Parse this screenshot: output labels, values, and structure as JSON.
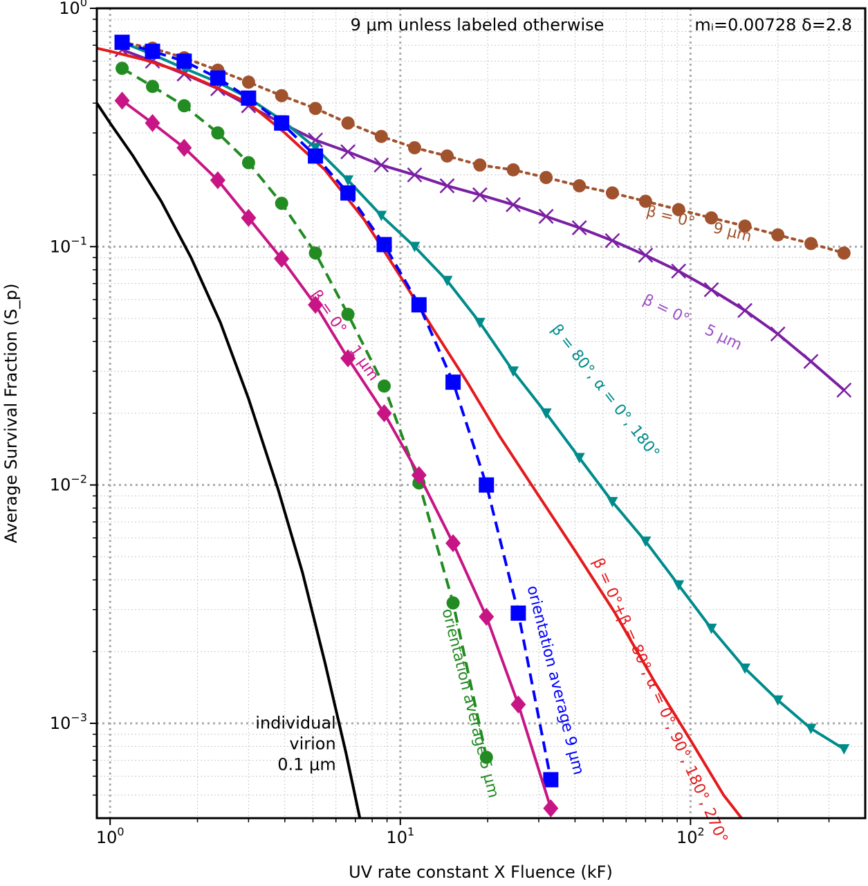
{
  "chart_data": {
    "type": "line",
    "title": "",
    "xlabel": "UV rate constant X Fluence (kF)",
    "ylabel": "Average Survival Fraction (S_p)",
    "xscale": "log",
    "yscale": "log",
    "xlim": [
      0.9,
      400
    ],
    "ylim": [
      0.0004,
      1
    ],
    "grid": true,
    "x_ticks": [
      {
        "value": 1,
        "base": "10",
        "exp": "0"
      },
      {
        "value": 10,
        "base": "10",
        "exp": "1"
      },
      {
        "value": 100,
        "base": "10",
        "exp": "2"
      }
    ],
    "y_ticks": [
      {
        "value": 1,
        "base": "10",
        "exp": "0"
      },
      {
        "value": 0.1,
        "base": "10",
        "exp": "−1"
      },
      {
        "value": 0.01,
        "base": "10",
        "exp": "−2"
      },
      {
        "value": 0.001,
        "base": "10",
        "exp": "−3"
      }
    ],
    "header_annotation": {
      "left": "9 μm unless labeled otherwise",
      "right": "mᵢ=0.00728 δ=2.8"
    },
    "series": [
      {
        "id": "beta0-9um",
        "color": "#a0522d",
        "linestyle": "dotted",
        "marker": "circle",
        "x": [
          1.1,
          1.4,
          1.8,
          2.35,
          3.0,
          3.9,
          5.1,
          6.6,
          8.6,
          11.2,
          14.5,
          18.8,
          24.5,
          31.8,
          41.4,
          53.8,
          70,
          91,
          118,
          154,
          200,
          260,
          338
        ],
        "y": [
          0.72,
          0.68,
          0.62,
          0.55,
          0.49,
          0.43,
          0.38,
          0.33,
          0.29,
          0.26,
          0.24,
          0.22,
          0.21,
          0.195,
          0.18,
          0.168,
          0.155,
          0.143,
          0.132,
          0.122,
          0.112,
          0.103,
          0.094
        ]
      },
      {
        "id": "beta0-5um",
        "color": "#7b1fa2",
        "linestyle": "solid",
        "marker": "x",
        "x": [
          1.1,
          1.4,
          1.8,
          2.35,
          3.0,
          3.9,
          5.1,
          6.6,
          8.6,
          11.2,
          14.5,
          18.8,
          24.5,
          31.8,
          41.4,
          53.8,
          70,
          91,
          118,
          154,
          200,
          260,
          338
        ],
        "y": [
          0.67,
          0.6,
          0.53,
          0.46,
          0.39,
          0.33,
          0.28,
          0.25,
          0.22,
          0.2,
          0.18,
          0.165,
          0.15,
          0.134,
          0.12,
          0.106,
          0.092,
          0.079,
          0.066,
          0.054,
          0.043,
          0.033,
          0.025
        ]
      },
      {
        "id": "beta80-alpha0-180",
        "color": "#008b8b",
        "linestyle": "solid",
        "marker": "triangle-down",
        "x": [
          1.1,
          1.4,
          1.8,
          2.35,
          3.0,
          3.9,
          5.1,
          6.6,
          8.6,
          11.2,
          14.5,
          18.8,
          24.5,
          31.8,
          41.4,
          53.8,
          70,
          91,
          118,
          154,
          200,
          260,
          338
        ],
        "y": [
          0.72,
          0.64,
          0.56,
          0.49,
          0.42,
          0.34,
          0.26,
          0.19,
          0.135,
          0.1,
          0.072,
          0.048,
          0.03,
          0.02,
          0.013,
          0.0085,
          0.0058,
          0.0038,
          0.0025,
          0.0017,
          0.00125,
          0.00095,
          0.00078
        ]
      },
      {
        "id": "beta0-plus-beta80",
        "color": "#e41a1c",
        "linestyle": "solid",
        "marker": "none",
        "x": [
          0.9,
          1.0,
          1.3,
          1.7,
          2.2,
          3.0,
          4.0,
          5.5,
          7.5,
          10,
          13,
          17,
          22,
          30,
          40,
          55,
          75,
          100,
          130,
          155
        ],
        "y": [
          0.68,
          0.66,
          0.61,
          0.55,
          0.48,
          0.4,
          0.3,
          0.21,
          0.13,
          0.075,
          0.045,
          0.027,
          0.016,
          0.009,
          0.0053,
          0.0029,
          0.0015,
          0.00085,
          0.0005,
          0.00038
        ]
      },
      {
        "id": "orientation-average-9um",
        "color": "#0000ff",
        "linestyle": "dashed",
        "marker": "square",
        "x": [
          1.1,
          1.4,
          1.8,
          2.35,
          3.0,
          3.9,
          5.1,
          6.6,
          8.8,
          11.6,
          15.2,
          19.8,
          25.5,
          33
        ],
        "y": [
          0.72,
          0.66,
          0.6,
          0.51,
          0.42,
          0.33,
          0.24,
          0.168,
          0.102,
          0.057,
          0.027,
          0.01,
          0.0029,
          0.00058
        ]
      },
      {
        "id": "orientation-average-5um",
        "color": "#228b22",
        "linestyle": "dashed",
        "marker": "circle",
        "x": [
          1.1,
          1.4,
          1.8,
          2.35,
          3.0,
          3.9,
          5.1,
          6.6,
          8.8,
          11.6,
          15.2,
          19.8
        ],
        "y": [
          0.56,
          0.47,
          0.39,
          0.3,
          0.225,
          0.152,
          0.094,
          0.052,
          0.026,
          0.0102,
          0.0032,
          0.00072
        ]
      },
      {
        "id": "beta0-1um",
        "color": "#c71585",
        "linestyle": "solid",
        "marker": "diamond",
        "x": [
          1.1,
          1.4,
          1.8,
          2.35,
          3.0,
          3.9,
          5.1,
          6.6,
          8.8,
          11.6,
          15.2,
          19.8,
          25.5,
          33
        ],
        "y": [
          0.41,
          0.33,
          0.26,
          0.19,
          0.132,
          0.089,
          0.057,
          0.034,
          0.02,
          0.011,
          0.0057,
          0.0028,
          0.0012,
          0.00044
        ]
      },
      {
        "id": "individual-virion",
        "color": "#000000",
        "linestyle": "solid",
        "marker": "none",
        "x": [
          0.9,
          1.0,
          1.2,
          1.5,
          1.9,
          2.4,
          3.0,
          3.8,
          4.6,
          5.5,
          6.5,
          7.5
        ],
        "y": [
          0.4,
          0.33,
          0.24,
          0.155,
          0.09,
          0.048,
          0.023,
          0.0095,
          0.0043,
          0.0018,
          0.00075,
          0.00033
        ]
      }
    ],
    "annotations": [
      {
        "lines": [
          "β = 0°",
          "9 μm"
        ],
        "color": "#a0522d",
        "x": 70,
        "y": 0.135,
        "angle": 14,
        "size": 22,
        "anchor": "start",
        "gap": 28
      },
      {
        "lines": [
          "β = 0°",
          "5 μm"
        ],
        "color": "#9a4fc4",
        "x": 68,
        "y": 0.058,
        "angle": 26,
        "size": 22,
        "anchor": "start",
        "gap": 28
      },
      {
        "lines": [
          "β = 80°, α = 0°, 180°"
        ],
        "color": "#008b8b",
        "x": 33,
        "y": 0.045,
        "angle": 52,
        "size": 22,
        "anchor": "start",
        "gap": 0
      },
      {
        "lines": [
          "β = 0°+β = 80°, α = 0°, 90°, 180°, 270°"
        ],
        "color": "#e41a1c",
        "x": 46,
        "y": 0.0048,
        "angle": 66,
        "size": 22,
        "anchor": "start",
        "gap": 0
      },
      {
        "lines": [
          "orientation average 9 μm"
        ],
        "color": "#0000ff",
        "x": 33,
        "y": 0.0015,
        "angle": 76,
        "size": 22,
        "anchor": "middle",
        "gap": 0
      },
      {
        "lines": [
          "orientation average 5 μm"
        ],
        "color": "#228b22",
        "x": 16.8,
        "y": 0.0012,
        "angle": 76,
        "size": 22,
        "anchor": "middle",
        "gap": 0
      },
      {
        "lines": [
          "β = 0°",
          "1 μm"
        ],
        "color": "#c71585",
        "x": 4.9,
        "y": 0.063,
        "angle": 55,
        "size": 22,
        "anchor": "start",
        "gap": 26
      },
      {
        "lines": [
          "individual",
          "virion",
          "0.1 μm"
        ],
        "color": "#000000",
        "x": 6.0,
        "y": 0.00095,
        "angle": 0,
        "size": 24,
        "anchor": "end",
        "gap": 30
      }
    ]
  }
}
